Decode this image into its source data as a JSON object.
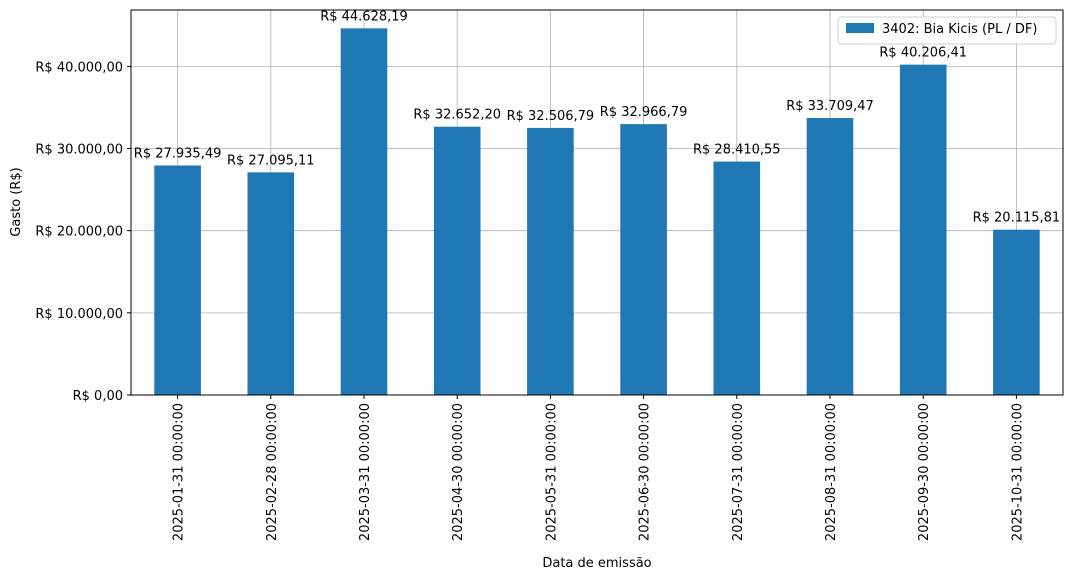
{
  "chart_data": {
    "type": "bar",
    "x_label": "Data de emissão",
    "y_label": "Gasto (R$)",
    "categories": [
      "2025-01-31 00:00:00",
      "2025-02-28 00:00:00",
      "2025-03-31 00:00:00",
      "2025-04-30 00:00:00",
      "2025-05-31 00:00:00",
      "2025-06-30 00:00:00",
      "2025-07-31 00:00:00",
      "2025-08-31 00:00:00",
      "2025-09-30 00:00:00",
      "2025-10-31 00:00:00"
    ],
    "series": [
      {
        "name": "3402: Bia Kicis (PL / DF)",
        "color": "#1f77b4",
        "values": [
          27935.49,
          27095.11,
          44628.19,
          32652.2,
          32506.79,
          32966.79,
          28410.55,
          33709.47,
          40206.41,
          20115.81
        ],
        "value_labels": [
          "R$ 27.935,49",
          "R$ 27.095,11",
          "R$ 44.628,19",
          "R$ 32.652,20",
          "R$ 32.506,79",
          "R$ 32.966,79",
          "R$ 28.410,55",
          "R$ 33.709,47",
          "R$ 40.206,41",
          "R$ 20.115,81"
        ]
      }
    ],
    "ylim": [
      0,
      46859.6
    ],
    "yticks": [
      {
        "value": 0,
        "label": "R$ 0,00"
      },
      {
        "value": 10000,
        "label": "R$ 10.000,00"
      },
      {
        "value": 20000,
        "label": "R$ 20.000,00"
      },
      {
        "value": 30000,
        "label": "R$ 30.000,00"
      },
      {
        "value": 40000,
        "label": "R$ 40.000,00"
      }
    ],
    "grid": true,
    "legend_position": "upper-right"
  }
}
